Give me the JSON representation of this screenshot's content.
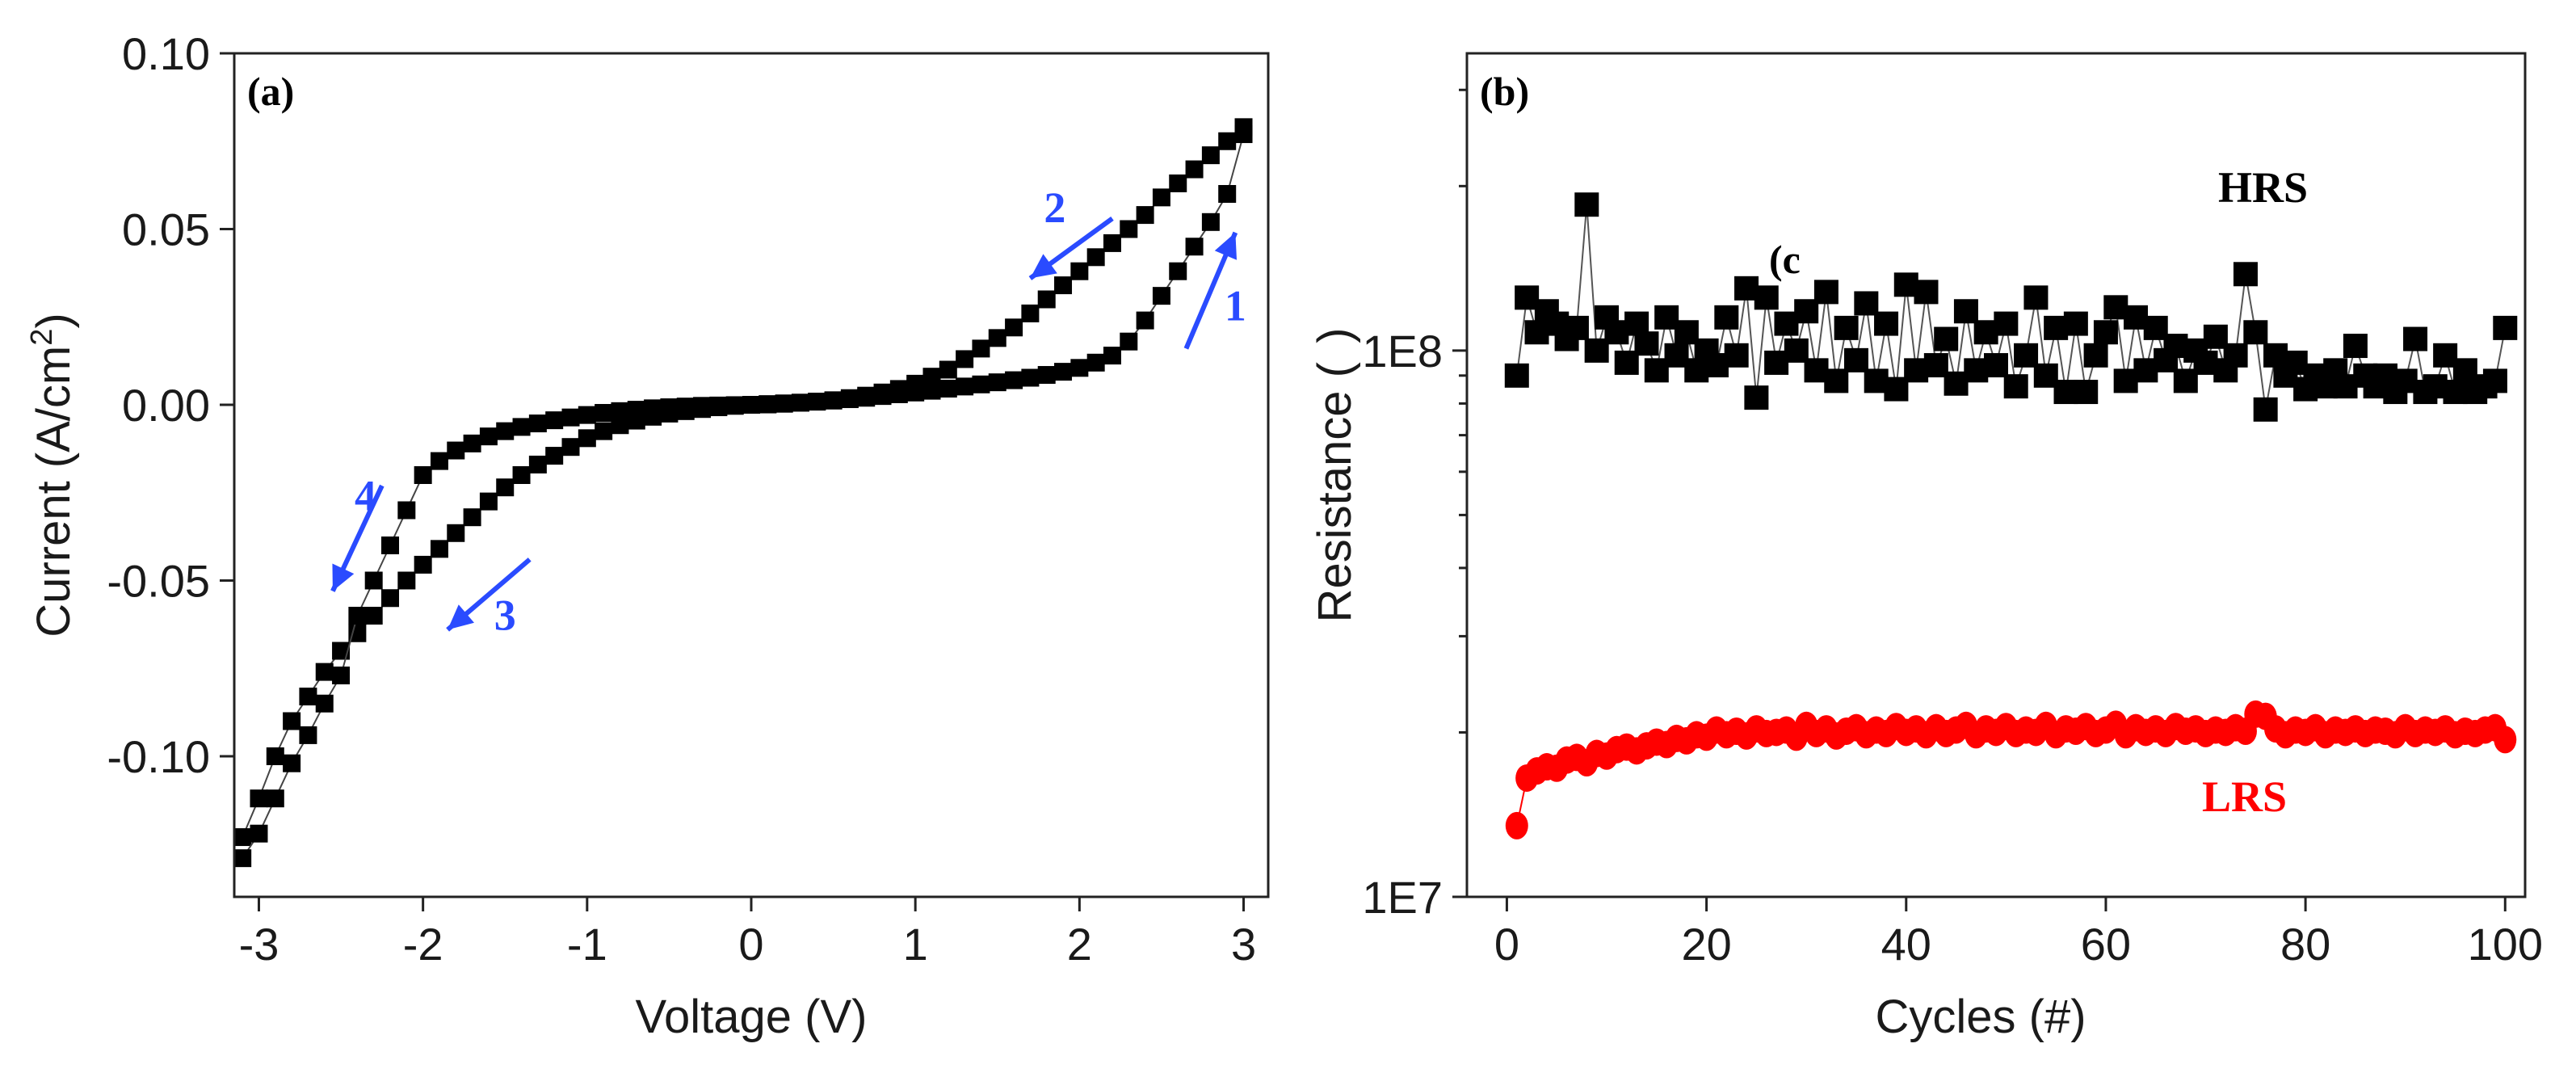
{
  "chart_data": [
    {
      "type": "scatter",
      "panel_label": "(a)",
      "xlabel": "Voltage (V)",
      "ylabel_main": "Current (A/cm",
      "ylabel_sup": "2",
      "ylabel_end": ")",
      "xlim": [
        -3.15,
        3.15
      ],
      "ylim": [
        -0.14,
        0.1
      ],
      "x_ticks": [
        -3,
        -2,
        -1,
        0,
        1,
        2,
        3
      ],
      "x_tick_labels": [
        "-3",
        "-2",
        "-1",
        "0",
        "1",
        "2",
        "3"
      ],
      "y_ticks": [
        0.1,
        0.05,
        0.0,
        -0.05,
        -0.1
      ],
      "y_tick_labels": [
        "0.10",
        "0.05",
        "0.00",
        "-0.05",
        "-0.10"
      ],
      "grid": false,
      "legend": "none",
      "marker_color": "#000000",
      "arrow_color": "#2a4bff",
      "series": [
        {
          "x": [
            0.0,
            0.1,
            0.2,
            0.3,
            0.4,
            0.5,
            0.6,
            0.7,
            0.8,
            0.9,
            1.0,
            1.1,
            1.2,
            1.3,
            1.4,
            1.5,
            1.6,
            1.7,
            1.8,
            1.9,
            2.0,
            2.1,
            2.2,
            2.3,
            2.4,
            2.5,
            2.6,
            2.7,
            2.8,
            2.9,
            3.0
          ],
          "y": [
            0.0,
            0.0002,
            0.0004,
            0.0006,
            0.0009,
            0.0012,
            0.0016,
            0.002,
            0.0025,
            0.003,
            0.0035,
            0.004,
            0.0046,
            0.0052,
            0.0058,
            0.0064,
            0.007,
            0.0077,
            0.0085,
            0.0094,
            0.0105,
            0.012,
            0.014,
            0.018,
            0.024,
            0.031,
            0.038,
            0.045,
            0.052,
            0.06,
            0.077
          ]
        },
        {
          "x": [
            3.0,
            2.9,
            2.8,
            2.7,
            2.6,
            2.5,
            2.4,
            2.3,
            2.2,
            2.1,
            2.0,
            1.9,
            1.8,
            1.7,
            1.6,
            1.5,
            1.4,
            1.3,
            1.2,
            1.1,
            1.0,
            0.9,
            0.8,
            0.7,
            0.6,
            0.5,
            0.4,
            0.3,
            0.2,
            0.1,
            0.0
          ],
          "y": [
            0.079,
            0.075,
            0.071,
            0.067,
            0.063,
            0.059,
            0.054,
            0.05,
            0.046,
            0.042,
            0.038,
            0.034,
            0.03,
            0.026,
            0.022,
            0.019,
            0.016,
            0.013,
            0.01,
            0.008,
            0.006,
            0.0045,
            0.0035,
            0.0026,
            0.0019,
            0.0013,
            0.0009,
            0.0006,
            0.0003,
            0.0001,
            0.0
          ]
        },
        {
          "x": [
            0.0,
            -0.1,
            -0.2,
            -0.3,
            -0.4,
            -0.5,
            -0.6,
            -0.7,
            -0.8,
            -0.9,
            -1.0,
            -1.1,
            -1.2,
            -1.3,
            -1.4,
            -1.5,
            -1.6,
            -1.7,
            -1.8,
            -1.9,
            -2.0,
            -2.1,
            -2.2,
            -2.3,
            -2.4,
            -2.5,
            -2.6,
            -2.7,
            -2.8,
            -2.9,
            -3.0,
            -3.1
          ],
          "y": [
            0.0,
            -0.0003,
            -0.0007,
            -0.0012,
            -0.0018,
            -0.0025,
            -0.0034,
            -0.0045,
            -0.0058,
            -0.0075,
            -0.0095,
            -0.012,
            -0.0145,
            -0.017,
            -0.02,
            -0.0235,
            -0.0275,
            -0.032,
            -0.0365,
            -0.041,
            -0.0455,
            -0.05,
            -0.055,
            -0.06,
            -0.065,
            -0.07,
            -0.076,
            -0.083,
            -0.09,
            -0.1,
            -0.112,
            -0.123
          ]
        },
        {
          "x": [
            -3.1,
            -3.0,
            -2.9,
            -2.8,
            -2.7,
            -2.6,
            -2.5,
            -2.4,
            -2.3,
            -2.2,
            -2.1,
            -2.0,
            -1.9,
            -1.8,
            -1.7,
            -1.6,
            -1.5,
            -1.4,
            -1.3,
            -1.2,
            -1.1,
            -1.0,
            -0.9,
            -0.8,
            -0.7,
            -0.6,
            -0.5,
            -0.4,
            -0.3,
            -0.2,
            -0.1,
            0.0
          ],
          "y": [
            -0.129,
            -0.122,
            -0.112,
            -0.102,
            -0.094,
            -0.085,
            -0.077,
            -0.06,
            -0.05,
            -0.04,
            -0.03,
            -0.02,
            -0.016,
            -0.013,
            -0.011,
            -0.009,
            -0.0075,
            -0.0063,
            -0.0053,
            -0.0044,
            -0.0036,
            -0.0029,
            -0.0023,
            -0.0018,
            -0.0014,
            -0.001,
            -0.0007,
            -0.0005,
            -0.0003,
            -0.0002,
            -0.0001,
            0.0
          ]
        }
      ],
      "annotations": [
        {
          "text": "1",
          "x": 2.95,
          "y": 0.024,
          "arrow_from": [
            2.65,
            0.016
          ],
          "arrow_to": [
            2.95,
            0.049
          ]
        },
        {
          "text": "2",
          "x": 1.85,
          "y": 0.052,
          "arrow_from": [
            2.2,
            0.053
          ],
          "arrow_to": [
            1.7,
            0.036
          ]
        },
        {
          "text": "3",
          "x": -1.5,
          "y": -0.064,
          "arrow_from": [
            -1.35,
            -0.044
          ],
          "arrow_to": [
            -1.85,
            -0.064
          ]
        },
        {
          "text": "4",
          "x": -2.35,
          "y": -0.03,
          "arrow_from": [
            -2.25,
            -0.023
          ],
          "arrow_to": [
            -2.55,
            -0.053
          ]
        }
      ]
    },
    {
      "type": "scatter",
      "panel_label": "(b)",
      "xlabel": "Cycles (#)",
      "ylabel": "Resistance (  )",
      "xlim": [
        -4,
        102
      ],
      "ylim": [
        10000000,
        350000000
      ],
      "log_y": true,
      "x_ticks": [
        0,
        20,
        40,
        60,
        80,
        100
      ],
      "x_tick_labels": [
        "0",
        "20",
        "40",
        "60",
        "80",
        "100"
      ],
      "y_ticks": [
        10000000,
        100000000
      ],
      "y_tick_labels": [
        "1E7",
        "1E8"
      ],
      "grid": false,
      "legend": "none",
      "stray_text": "(c",
      "series": [
        {
          "name": "HRS",
          "color": "#000000",
          "marker": "square",
          "x": [
            1,
            2,
            3,
            4,
            5,
            6,
            7,
            8,
            9,
            10,
            11,
            12,
            13,
            14,
            15,
            16,
            17,
            18,
            19,
            20,
            21,
            22,
            23,
            24,
            25,
            26,
            27,
            28,
            29,
            30,
            31,
            32,
            33,
            34,
            35,
            36,
            37,
            38,
            39,
            40,
            41,
            42,
            43,
            44,
            45,
            46,
            47,
            48,
            49,
            50,
            51,
            52,
            53,
            54,
            55,
            56,
            57,
            58,
            59,
            60,
            61,
            62,
            63,
            64,
            65,
            66,
            67,
            68,
            69,
            70,
            71,
            72,
            73,
            74,
            75,
            76,
            77,
            78,
            79,
            80,
            81,
            82,
            83,
            84,
            85,
            86,
            87,
            88,
            89,
            90,
            91,
            92,
            93,
            94,
            95,
            96,
            97,
            98,
            99,
            100
          ],
          "y": [
            90000000,
            125000000,
            108000000,
            118000000,
            112000000,
            105000000,
            110000000,
            185000000,
            100000000,
            115000000,
            108000000,
            95000000,
            112000000,
            103000000,
            92000000,
            115000000,
            98000000,
            108000000,
            92000000,
            100000000,
            94000000,
            115000000,
            98000000,
            130000000,
            82000000,
            125000000,
            95000000,
            112000000,
            100000000,
            118000000,
            92000000,
            128000000,
            88000000,
            110000000,
            96000000,
            122000000,
            88000000,
            112000000,
            85000000,
            132000000,
            92000000,
            128000000,
            94000000,
            105000000,
            87000000,
            118000000,
            92000000,
            108000000,
            94000000,
            112000000,
            86000000,
            98000000,
            125000000,
            90000000,
            110000000,
            84000000,
            112000000,
            84000000,
            98000000,
            108000000,
            120000000,
            88000000,
            115000000,
            92000000,
            110000000,
            96000000,
            102000000,
            88000000,
            100000000,
            95000000,
            106000000,
            92000000,
            98000000,
            138000000,
            108000000,
            78000000,
            98000000,
            90000000,
            95000000,
            85000000,
            90000000,
            86000000,
            92000000,
            86000000,
            102000000,
            90000000,
            86000000,
            90000000,
            84000000,
            88000000,
            105000000,
            84000000,
            86000000,
            98000000,
            84000000,
            92000000,
            84000000,
            86000000,
            88000000,
            110000000
          ]
        },
        {
          "name": "LRS",
          "color": "#ff0000",
          "marker": "circle",
          "x": [
            1,
            2,
            3,
            4,
            5,
            6,
            7,
            8,
            9,
            10,
            11,
            12,
            13,
            14,
            15,
            16,
            17,
            18,
            19,
            20,
            21,
            22,
            23,
            24,
            25,
            26,
            27,
            28,
            29,
            30,
            31,
            32,
            33,
            34,
            35,
            36,
            37,
            38,
            39,
            40,
            41,
            42,
            43,
            44,
            45,
            46,
            47,
            48,
            49,
            50,
            51,
            52,
            53,
            54,
            55,
            56,
            57,
            58,
            59,
            60,
            61,
            62,
            63,
            64,
            65,
            66,
            67,
            68,
            69,
            70,
            71,
            72,
            73,
            74,
            75,
            76,
            77,
            78,
            79,
            80,
            81,
            82,
            83,
            84,
            85,
            86,
            87,
            88,
            89,
            90,
            91,
            92,
            93,
            94,
            95,
            96,
            97,
            98,
            99,
            100
          ],
          "y": [
            13500000,
            16500000,
            17000000,
            17300000,
            17200000,
            17800000,
            18000000,
            17600000,
            18300000,
            18100000,
            18600000,
            18800000,
            18500000,
            18900000,
            19200000,
            19000000,
            19500000,
            19300000,
            19800000,
            19600000,
            20200000,
            19800000,
            20100000,
            19700000,
            20300000,
            19900000,
            20000000,
            20200000,
            19600000,
            20600000,
            19900000,
            20300000,
            19700000,
            20100000,
            20400000,
            19800000,
            20200000,
            19900000,
            20500000,
            20000000,
            20300000,
            19800000,
            20400000,
            19900000,
            20200000,
            20600000,
            19800000,
            20300000,
            20000000,
            20500000,
            19900000,
            20200000,
            20000000,
            20600000,
            19800000,
            20300000,
            20100000,
            20500000,
            19900000,
            20200000,
            20700000,
            19800000,
            20400000,
            20000000,
            20300000,
            19900000,
            20500000,
            20100000,
            20300000,
            19900000,
            20200000,
            20000000,
            20400000,
            20100000,
            21600000,
            21400000,
            20300000,
            19800000,
            20200000,
            20000000,
            20400000,
            19800000,
            20200000,
            20000000,
            20300000,
            19900000,
            20200000,
            20100000,
            19800000,
            20400000,
            19900000,
            20200000,
            20000000,
            20300000,
            19800000,
            20100000,
            19900000,
            20200000,
            20400000,
            19400000
          ]
        }
      ]
    }
  ]
}
